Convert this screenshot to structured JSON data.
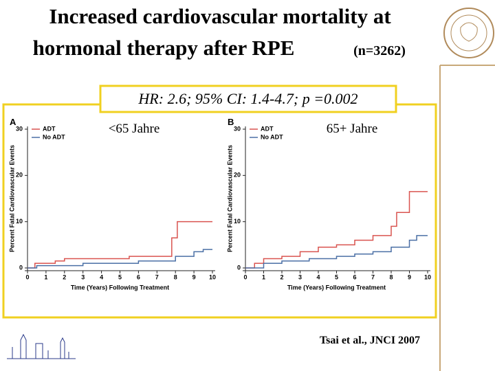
{
  "title_lines": [
    "Increased cardiovascular mortality at",
    "hormonal therapy after RPE"
  ],
  "title_note": "(n=3262)",
  "hr_box": "HR: 2.6; 95% CI: 1.4-4.7; p =0.002",
  "citation": "Tsai et al., JNCI 2007",
  "chart_data": [
    {
      "type": "line",
      "step": true,
      "panel": "A",
      "annotation": "<65 Jahre",
      "xlabel": "Time (Years) Following Treatment",
      "ylabel": "Percent Fatal Cardiovascular Events",
      "xlim": [
        0,
        10
      ],
      "ylim": [
        0,
        30
      ],
      "xticks": [
        0,
        1,
        2,
        3,
        4,
        5,
        6,
        7,
        8,
        9,
        10
      ],
      "yticks": [
        0,
        10,
        20,
        30
      ],
      "series": [
        {
          "name": "ADT",
          "color": "#d9534f",
          "x": [
            0,
            0.4,
            1.5,
            2,
            5.5,
            7.8,
            8.1,
            10
          ],
          "values": [
            0,
            1,
            1.5,
            2,
            2.5,
            6.5,
            10,
            10
          ]
        },
        {
          "name": "No ADT",
          "color": "#4a6fa5",
          "x": [
            0,
            0.5,
            3,
            6,
            8,
            9,
            9.5,
            10
          ],
          "values": [
            0,
            0.5,
            1,
            1.5,
            2.5,
            3.5,
            4,
            4
          ]
        }
      ]
    },
    {
      "type": "line",
      "step": true,
      "panel": "B",
      "annotation": "65+ Jahre",
      "xlabel": "Time (Years) Following Treatment",
      "ylabel": "Percent Fatal Cardiovascular Events",
      "xlim": [
        0,
        10
      ],
      "ylim": [
        0,
        30
      ],
      "xticks": [
        0,
        1,
        2,
        3,
        4,
        5,
        6,
        7,
        8,
        9,
        10
      ],
      "yticks": [
        0,
        10,
        20,
        30
      ],
      "series": [
        {
          "name": "ADT",
          "color": "#d9534f",
          "x": [
            0,
            0.5,
            1,
            2,
            3,
            4,
            5,
            6,
            7,
            8,
            8.3,
            9,
            10
          ],
          "values": [
            0,
            1,
            2,
            2.5,
            3.5,
            4.5,
            5,
            6,
            7,
            9,
            12,
            16.5,
            16.5
          ]
        },
        {
          "name": "No ADT",
          "color": "#4a6fa5",
          "x": [
            0,
            1,
            2,
            3.5,
            5,
            6,
            7,
            8,
            9,
            9.4,
            10
          ],
          "values": [
            0,
            1,
            1.5,
            2,
            2.5,
            3,
            3.5,
            4.5,
            6,
            7,
            7
          ]
        }
      ]
    }
  ]
}
